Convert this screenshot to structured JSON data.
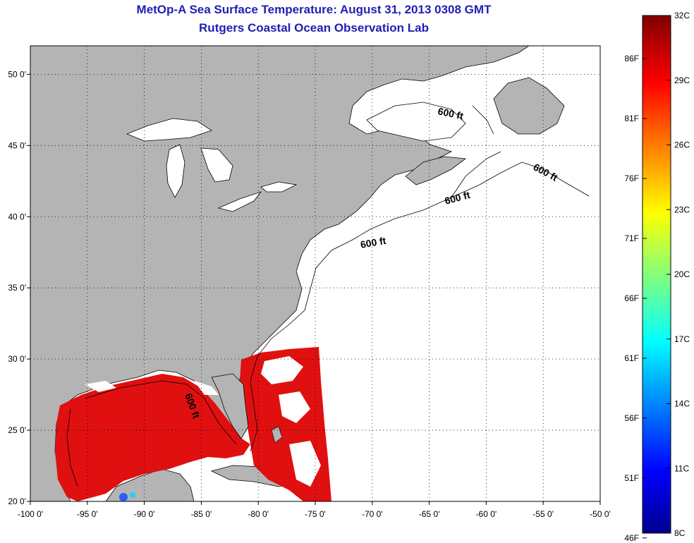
{
  "header": {
    "title": "MetOp-A Sea Surface Temperature:  August 31, 2013 0308 GMT",
    "subtitle": "Rutgers Coastal Ocean Observation Lab"
  },
  "map": {
    "lon_range": [
      -100,
      -50
    ],
    "lat_range": [
      20,
      52
    ],
    "lon_ticks": [
      "-100 0'",
      "-95 0'",
      "-90 0'",
      "-85 0'",
      "-80 0'",
      "-75 0'",
      "-70 0'",
      "-65 0'",
      "-60 0'",
      "-55 0'",
      "-50 0'"
    ],
    "lon_tick_values": [
      -100,
      -95,
      -90,
      -85,
      -80,
      -75,
      -70,
      -65,
      -60,
      -55,
      -50
    ],
    "lat_ticks": [
      "20 0'",
      "25 0'",
      "30 0'",
      "35 0'",
      "40 0'",
      "45 0'",
      "50 0'"
    ],
    "lat_tick_values": [
      20,
      25,
      30,
      35,
      40,
      45,
      50
    ],
    "grid": "dotted",
    "contour_labels": [
      "600 ft",
      "600 ft",
      "600 ft",
      "600 ft",
      "600 ft"
    ],
    "colors": {
      "land": "#b4b4b4",
      "water": "#ffffff",
      "sst": "#e01010"
    }
  },
  "colorbar": {
    "celsius": [
      "32C",
      "29C",
      "26C",
      "23C",
      "20C",
      "17C",
      "14C",
      "11C",
      "8C"
    ],
    "fahrenheit": [
      "86F",
      "81F",
      "76F",
      "71F",
      "66F",
      "61F",
      "56F",
      "51F",
      "46F"
    ],
    "celsius_values": [
      32,
      29,
      26,
      23,
      20,
      17,
      14,
      11,
      8
    ],
    "fahrenheit_values": [
      86,
      81,
      76,
      71,
      66,
      61,
      56,
      51,
      46
    ],
    "range_c": [
      8,
      32
    ]
  }
}
